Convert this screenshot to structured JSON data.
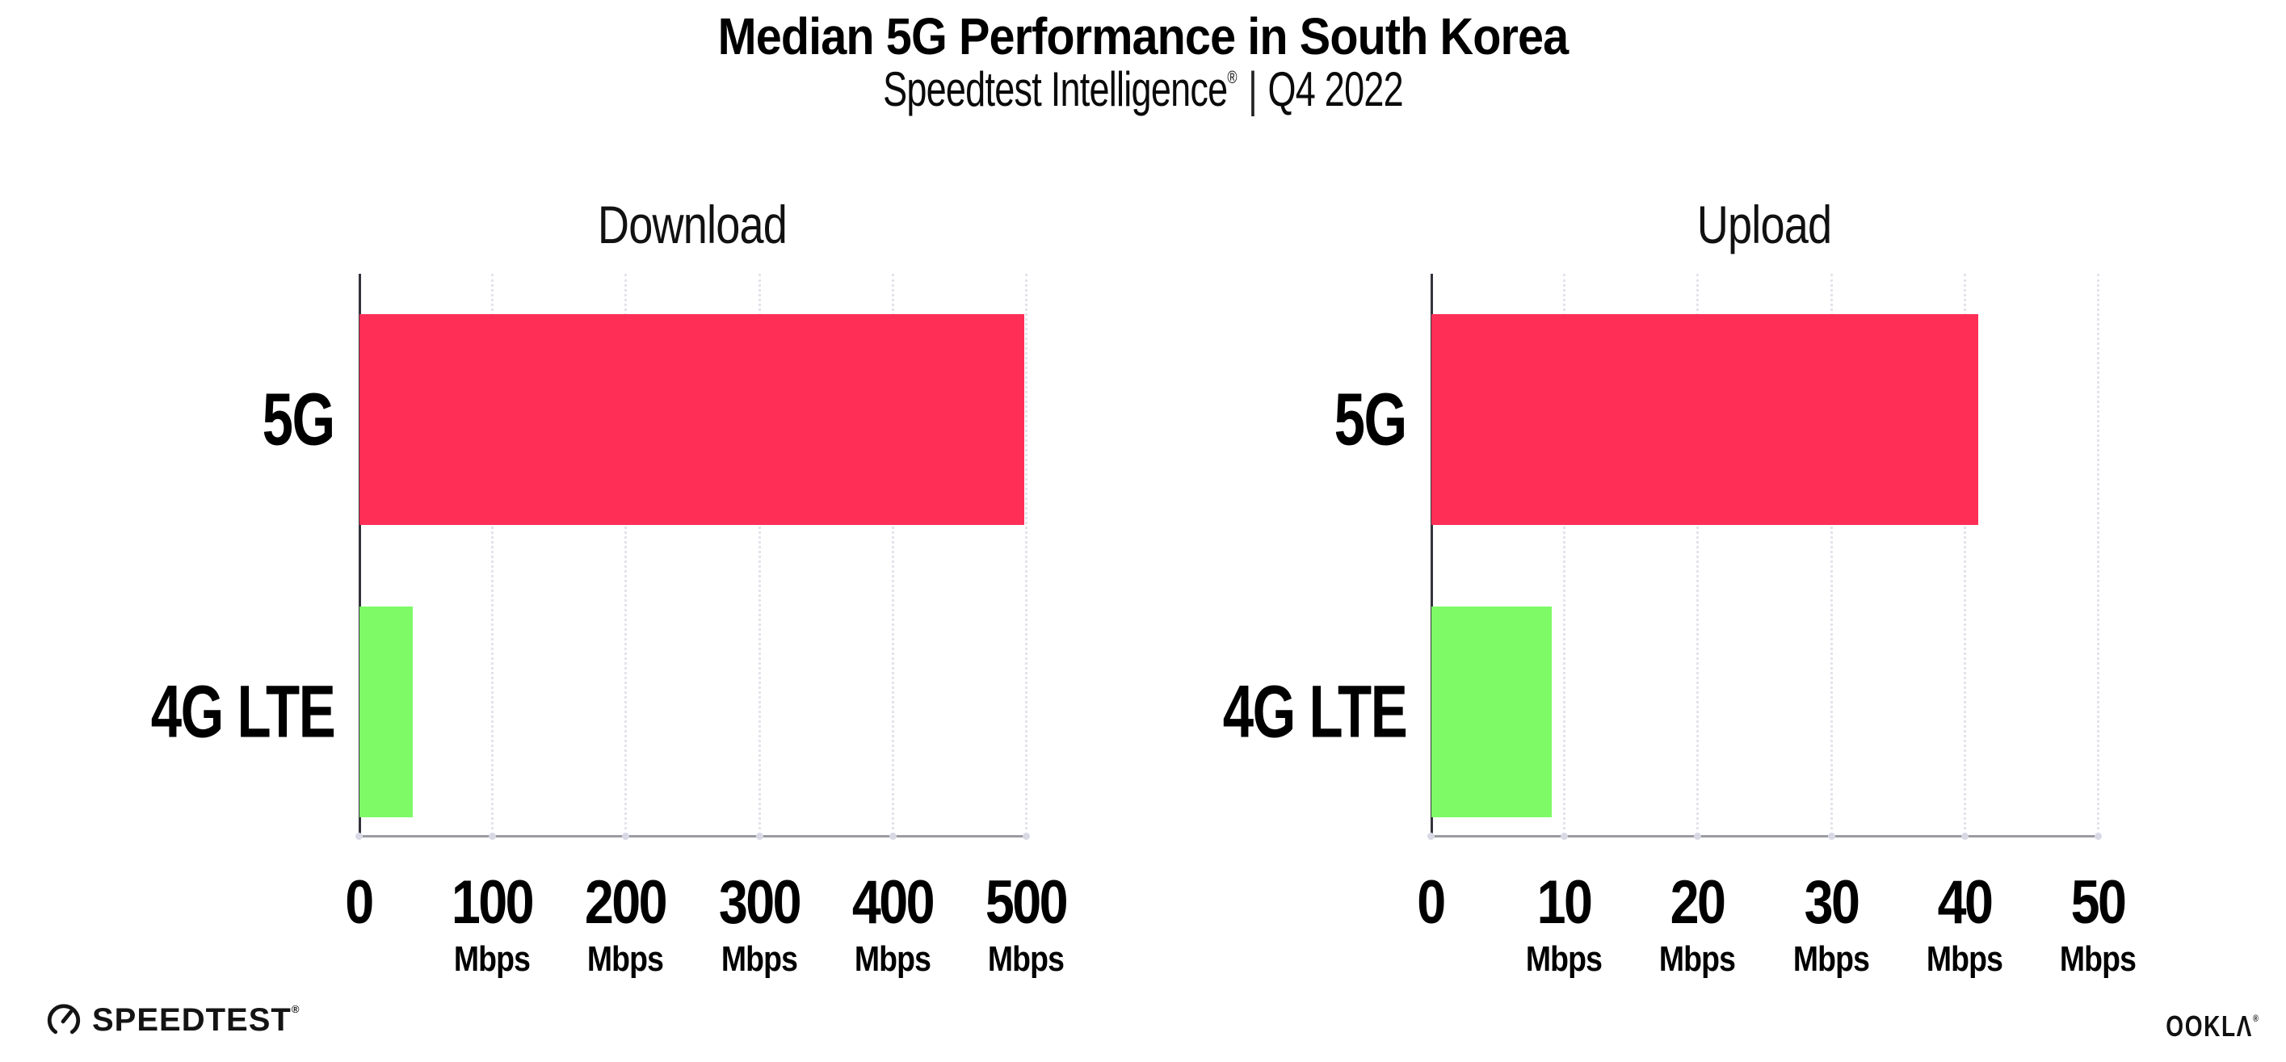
{
  "header": {
    "title": "Median 5G Performance in South Korea",
    "subtitle_brand": "Speedtest Intelligence",
    "subtitle_reg": "®",
    "subtitle_sep": "|",
    "subtitle_period": "Q4 2022"
  },
  "footer": {
    "speedtest_label": "SPEEDTEST",
    "speedtest_reg": "®",
    "ookla_label": "OOKLΛ",
    "ookla_reg": "®"
  },
  "colors": {
    "bar_5g": "#FF2E56",
    "bar_4g_lte": "#7EFA67",
    "gridline": "#E3E3EC",
    "x_axis": "#9B9BA3",
    "y_axis": "#33333D",
    "text": "#000000"
  },
  "chart_data": [
    {
      "type": "bar",
      "orientation": "horizontal",
      "title": "Download",
      "categories": [
        "5G",
        "4G LTE"
      ],
      "values": [
        498,
        40
      ],
      "unit": "Mbps",
      "xlim": [
        0,
        500
      ],
      "xticks": [
        0,
        100,
        200,
        300,
        400,
        500
      ],
      "tick_unit_label": "Mbps",
      "bar_colors": [
        "#FF2E56",
        "#7EFA67"
      ],
      "grid": "dotted-vertical",
      "legend": "none"
    },
    {
      "type": "bar",
      "orientation": "horizontal",
      "title": "Upload",
      "categories": [
        "5G",
        "4G LTE"
      ],
      "values": [
        41,
        9
      ],
      "unit": "Mbps",
      "xlim": [
        0,
        50
      ],
      "xticks": [
        0,
        10,
        20,
        30,
        40,
        50
      ],
      "tick_unit_label": "Mbps",
      "bar_colors": [
        "#FF2E56",
        "#7EFA67"
      ],
      "grid": "dotted-vertical",
      "legend": "none"
    }
  ]
}
